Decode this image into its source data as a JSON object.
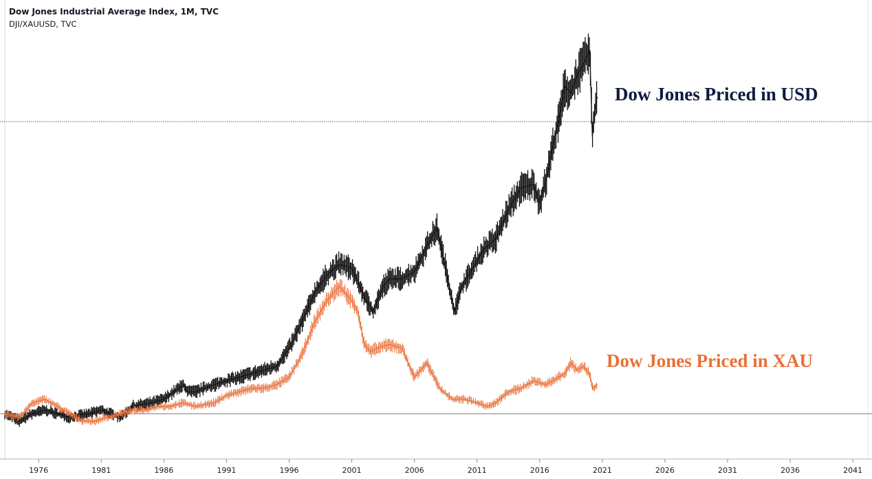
{
  "header": {
    "title": "Dow Jones Industrial Average Index, 1M, TVC",
    "subtitle": "DJI/XAUUSD, TVC"
  },
  "chart_data": {
    "type": "line",
    "xaxis": {
      "ticks": [
        "1976",
        "1981",
        "1986",
        "1991",
        "1996",
        "2001",
        "2006",
        "2011",
        "2016",
        "2021",
        "2026",
        "2031",
        "2036",
        "2041"
      ],
      "range": [
        1973.3,
        2042.2
      ]
    },
    "annotations": [
      "Dow Jones Priced in USD",
      "Dow Jones Priced in XAU"
    ],
    "grid": false,
    "colors": {
      "usd": "#111111",
      "xau": "#e8703a",
      "usd_label": "#0e1a40"
    },
    "series": [
      {
        "key": "usd",
        "points": [
          [
            1973.3,
            0.0
          ],
          [
            1974.5,
            -0.02
          ],
          [
            1975.5,
            0.0
          ],
          [
            1976.5,
            0.01
          ],
          [
            1977.5,
            0.0
          ],
          [
            1978.5,
            -0.01
          ],
          [
            1980,
            0.0
          ],
          [
            1981,
            0.01
          ],
          [
            1982.5,
            -0.01
          ],
          [
            1983.5,
            0.02
          ],
          [
            1985,
            0.03
          ],
          [
            1986,
            0.04
          ],
          [
            1987.6,
            0.08
          ],
          [
            1987.9,
            0.06
          ],
          [
            1988.5,
            0.06
          ],
          [
            1990,
            0.08
          ],
          [
            1991,
            0.09
          ],
          [
            1992,
            0.1
          ],
          [
            1993,
            0.11
          ],
          [
            1994,
            0.12
          ],
          [
            1995,
            0.13
          ],
          [
            1996,
            0.18
          ],
          [
            1997,
            0.25
          ],
          [
            1998,
            0.33
          ],
          [
            1999,
            0.38
          ],
          [
            2000,
            0.41
          ],
          [
            2001,
            0.4
          ],
          [
            2002,
            0.32
          ],
          [
            2002.7,
            0.28
          ],
          [
            2003.5,
            0.35
          ],
          [
            2004,
            0.37
          ],
          [
            2005,
            0.37
          ],
          [
            2006,
            0.39
          ],
          [
            2007,
            0.46
          ],
          [
            2007.8,
            0.51
          ],
          [
            2008.5,
            0.4
          ],
          [
            2009.2,
            0.28
          ],
          [
            2009.8,
            0.35
          ],
          [
            2010.5,
            0.39
          ],
          [
            2011.5,
            0.45
          ],
          [
            2012.5,
            0.48
          ],
          [
            2013.5,
            0.56
          ],
          [
            2014.5,
            0.62
          ],
          [
            2015.5,
            0.63
          ],
          [
            2016.0,
            0.58
          ],
          [
            2016.5,
            0.64
          ],
          [
            2017,
            0.73
          ],
          [
            2017.5,
            0.8
          ],
          [
            2018,
            0.9
          ],
          [
            2018.5,
            0.88
          ],
          [
            2019,
            0.93
          ],
          [
            2019.5,
            0.96
          ],
          [
            2020.0,
            1.0
          ],
          [
            2020.2,
            0.76
          ],
          [
            2020.4,
            0.84
          ],
          [
            2020.6,
            0.87
          ]
        ]
      },
      {
        "key": "xau",
        "points": [
          [
            1973.3,
            0.0
          ],
          [
            1974.5,
            -0.01
          ],
          [
            1975.5,
            0.03
          ],
          [
            1976.5,
            0.04
          ],
          [
            1977.5,
            0.02
          ],
          [
            1978.5,
            0.0
          ],
          [
            1979.5,
            -0.02
          ],
          [
            1980.5,
            -0.02
          ],
          [
            1981.5,
            -0.01
          ],
          [
            1982.5,
            0.0
          ],
          [
            1983.5,
            0.01
          ],
          [
            1984.5,
            0.01
          ],
          [
            1985.5,
            0.02
          ],
          [
            1986.5,
            0.02
          ],
          [
            1987.5,
            0.03
          ],
          [
            1988.5,
            0.02
          ],
          [
            1990,
            0.03
          ],
          [
            1991,
            0.05
          ],
          [
            1992,
            0.06
          ],
          [
            1993,
            0.07
          ],
          [
            1994,
            0.07
          ],
          [
            1995,
            0.08
          ],
          [
            1996,
            0.1
          ],
          [
            1997,
            0.16
          ],
          [
            1998,
            0.25
          ],
          [
            1999,
            0.31
          ],
          [
            2000,
            0.35
          ],
          [
            2000.5,
            0.33
          ],
          [
            2001,
            0.31
          ],
          [
            2001.5,
            0.28
          ],
          [
            2002,
            0.19
          ],
          [
            2002.5,
            0.17
          ],
          [
            2003,
            0.18
          ],
          [
            2004,
            0.19
          ],
          [
            2005,
            0.18
          ],
          [
            2006,
            0.1
          ],
          [
            2007,
            0.14
          ],
          [
            2008,
            0.07
          ],
          [
            2009,
            0.04
          ],
          [
            2010,
            0.04
          ],
          [
            2011,
            0.03
          ],
          [
            2011.8,
            0.02
          ],
          [
            2012.5,
            0.03
          ],
          [
            2013.5,
            0.06
          ],
          [
            2014.5,
            0.07
          ],
          [
            2015.5,
            0.09
          ],
          [
            2016.5,
            0.08
          ],
          [
            2017,
            0.09
          ],
          [
            2018,
            0.11
          ],
          [
            2018.5,
            0.14
          ],
          [
            2019,
            0.12
          ],
          [
            2019.5,
            0.13
          ],
          [
            2020,
            0.11
          ],
          [
            2020.2,
            0.07
          ],
          [
            2020.6,
            0.08
          ]
        ]
      }
    ]
  }
}
